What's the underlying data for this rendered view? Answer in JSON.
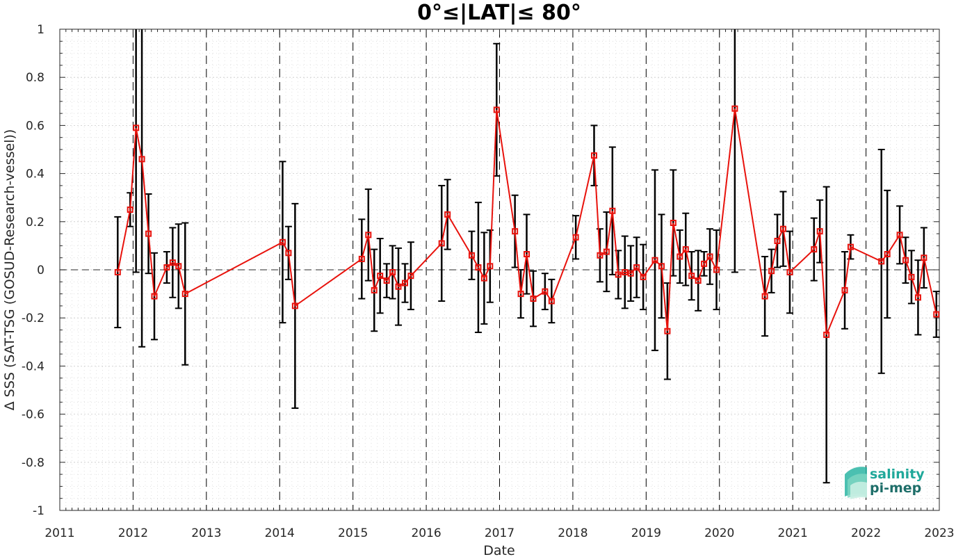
{
  "chart_data": {
    "type": "line",
    "title": "0°≤|LAT|≤ 80°",
    "xlabel": "Date",
    "ylabel": "Δ SSS (SAT-TSG (GOSUD-Research-vessel))",
    "xlim": [
      2011,
      2023
    ],
    "ylim": [
      -1,
      1
    ],
    "x_ticks": [
      "2011",
      "2012",
      "2013",
      "2014",
      "2015",
      "2016",
      "2017",
      "2018",
      "2019",
      "2020",
      "2021",
      "2022",
      "2023"
    ],
    "y_ticks": [
      "-1",
      "-0.8",
      "-0.6",
      "-0.4",
      "-0.2",
      "0",
      "0.2",
      "0.4",
      "0.6",
      "0.8",
      "1"
    ],
    "grid": true,
    "zero_line": true,
    "year_boundaries_dashed": true,
    "colors": {
      "series": "#e8120c",
      "errorbar": "#000000",
      "zero_line": "#555555"
    },
    "series": [
      {
        "x": [
          2011.79,
          2011.96,
          2012.04,
          2012.12,
          2012.21,
          2012.29,
          2012.46,
          2012.54,
          2012.62,
          2012.71,
          2014.04,
          2014.12,
          2014.21,
          2015.12,
          2015.21,
          2015.29,
          2015.37,
          2015.46,
          2015.54,
          2015.62,
          2015.71,
          2015.79,
          2016.21,
          2016.29,
          2016.62,
          2016.71,
          2016.79,
          2016.87,
          2016.96,
          2017.21,
          2017.29,
          2017.37,
          2017.46,
          2017.62,
          2017.71,
          2018.04,
          2018.29,
          2018.37,
          2018.46,
          2018.54,
          2018.62,
          2018.71,
          2018.79,
          2018.87,
          2018.96,
          2019.12,
          2019.21,
          2019.29,
          2019.37,
          2019.46,
          2019.54,
          2019.62,
          2019.71,
          2019.79,
          2019.87,
          2019.96,
          2020.21,
          2020.62,
          2020.71,
          2020.79,
          2020.87,
          2020.96,
          2021.29,
          2021.37,
          2021.46,
          2021.71,
          2021.79,
          2022.21,
          2022.29,
          2022.46,
          2022.54,
          2022.62,
          2022.71,
          2022.79,
          2022.96
        ],
        "y": [
          -0.01,
          0.25,
          0.59,
          0.46,
          0.15,
          -0.11,
          0.01,
          0.03,
          0.015,
          -0.1,
          0.115,
          0.07,
          -0.15,
          0.045,
          0.145,
          -0.085,
          -0.025,
          -0.045,
          -0.01,
          -0.07,
          -0.055,
          -0.025,
          0.11,
          0.23,
          0.06,
          0.01,
          -0.035,
          0.015,
          0.665,
          0.16,
          -0.1,
          0.065,
          -0.12,
          -0.09,
          -0.13,
          0.135,
          0.475,
          0.06,
          0.075,
          0.245,
          -0.02,
          -0.01,
          -0.015,
          0.01,
          -0.03,
          0.04,
          0.015,
          -0.255,
          0.195,
          0.055,
          0.085,
          -0.025,
          -0.045,
          0.025,
          0.055,
          0.0,
          0.67,
          -0.11,
          -0.005,
          0.12,
          0.17,
          -0.01,
          0.085,
          0.16,
          -0.27,
          -0.085,
          0.095,
          0.035,
          0.065,
          0.145,
          0.04,
          -0.03,
          -0.115,
          0.05,
          -0.185
        ],
        "error": [
          0.23,
          0.07,
          0.6,
          0.78,
          0.165,
          0.18,
          0.065,
          0.145,
          0.175,
          0.295,
          0.335,
          0.11,
          0.425,
          0.165,
          0.19,
          0.17,
          0.155,
          0.07,
          0.11,
          0.16,
          0.08,
          0.14,
          0.24,
          0.145,
          0.1,
          0.27,
          0.19,
          0.15,
          0.275,
          0.15,
          0.1,
          0.165,
          0.115,
          0.075,
          0.09,
          0.09,
          0.125,
          0.11,
          0.165,
          0.265,
          0.1,
          0.15,
          0.115,
          0.125,
          0.135,
          0.375,
          0.215,
          0.2,
          0.22,
          0.11,
          0.15,
          0.1,
          0.125,
          0.05,
          0.115,
          0.165,
          0.68,
          0.165,
          0.09,
          0.11,
          0.155,
          0.17,
          0.13,
          0.13,
          0.615,
          0.16,
          0.05,
          0.465,
          0.265,
          0.12,
          0.095,
          0.11,
          0.155,
          0.125,
          0.095
        ]
      }
    ]
  },
  "logo": {
    "line1": "salinity",
    "line2": "pi-mep",
    "color1": "#1fa89a",
    "color2": "#1e6e69"
  }
}
